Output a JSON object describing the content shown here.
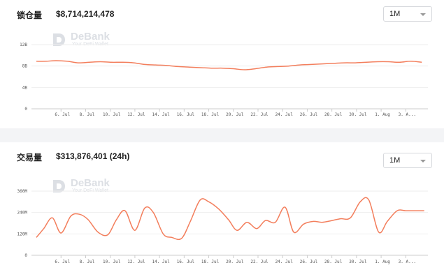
{
  "tvl_panel": {
    "label": "锁仓量",
    "value": "$8,714,214,478",
    "range_selector": "1M"
  },
  "volume_panel": {
    "label": "交易量",
    "value": "$313,876,401 (24h)",
    "range_selector": "1M"
  },
  "watermark": {
    "title": "DeBank",
    "subtitle": "Your DeFi Wallet"
  },
  "colors": {
    "line": "#f37e5c",
    "grid": "#eeeeee",
    "axis": "#cccccc"
  },
  "x_tick_labels": [
    "6. Jul",
    "8. Jul",
    "10. Jul",
    "12. Jul",
    "14. Jul",
    "16. Jul",
    "18. Jul",
    "20. Jul",
    "22. Jul",
    "24. Jul",
    "26. Jul",
    "28. Jul",
    "30. Jul",
    "1. Aug",
    "3. A..."
  ],
  "chart_data": [
    {
      "type": "line",
      "title": "锁仓量",
      "ylim": [
        0,
        12
      ],
      "y_ticks": [
        0,
        4,
        8,
        12
      ],
      "y_tick_labels": [
        "0",
        "4B",
        "8B",
        "12B"
      ],
      "grid": true,
      "x": [
        4.0,
        4.8,
        5.6,
        6.5,
        7.4,
        8.3,
        9.2,
        10.1,
        11.0,
        11.9,
        12.8,
        13.7,
        14.6,
        15.5,
        16.4,
        17.3,
        18.2,
        19.1,
        20.0,
        20.9,
        21.8,
        22.7,
        23.6,
        24.5,
        25.4,
        26.3,
        27.2,
        28.1,
        29.0,
        29.9,
        30.8,
        31.7,
        32.6,
        33.5,
        34.4,
        35.3
      ],
      "values": [
        8.9,
        8.9,
        9.0,
        8.9,
        8.6,
        8.7,
        8.8,
        8.7,
        8.7,
        8.6,
        8.3,
        8.2,
        8.1,
        7.9,
        7.8,
        7.7,
        7.6,
        7.6,
        7.5,
        7.3,
        7.5,
        7.8,
        7.9,
        8.0,
        8.2,
        8.3,
        8.4,
        8.5,
        8.6,
        8.6,
        8.7,
        8.8,
        8.8,
        8.7,
        8.9,
        8.7
      ]
    },
    {
      "type": "line",
      "title": "交易量",
      "ylim": [
        0,
        360
      ],
      "y_ticks": [
        0,
        120,
        240,
        360
      ],
      "y_tick_labels": [
        "0",
        "120M",
        "240M",
        "360M"
      ],
      "grid": true,
      "x": [
        4.0,
        4.6,
        5.3,
        6.0,
        6.8,
        7.5,
        8.2,
        9.0,
        9.8,
        10.5,
        11.2,
        12.0,
        12.8,
        13.5,
        14.3,
        15.0,
        15.8,
        16.5,
        17.3,
        18.0,
        18.8,
        19.6,
        20.3,
        21.1,
        21.9,
        22.6,
        23.4,
        24.2,
        24.9,
        25.7,
        26.5,
        27.2,
        28.0,
        28.7,
        29.5,
        30.3,
        31.0,
        31.8,
        32.5,
        33.3,
        34.0,
        34.8,
        35.5
      ],
      "values": [
        100,
        150,
        210,
        125,
        220,
        230,
        200,
        130,
        115,
        200,
        250,
        140,
        265,
        240,
        120,
        100,
        95,
        190,
        310,
        300,
        260,
        200,
        140,
        185,
        150,
        195,
        185,
        270,
        130,
        175,
        190,
        185,
        195,
        205,
        210,
        300,
        310,
        130,
        190,
        250,
        250,
        250,
        250
      ]
    }
  ]
}
